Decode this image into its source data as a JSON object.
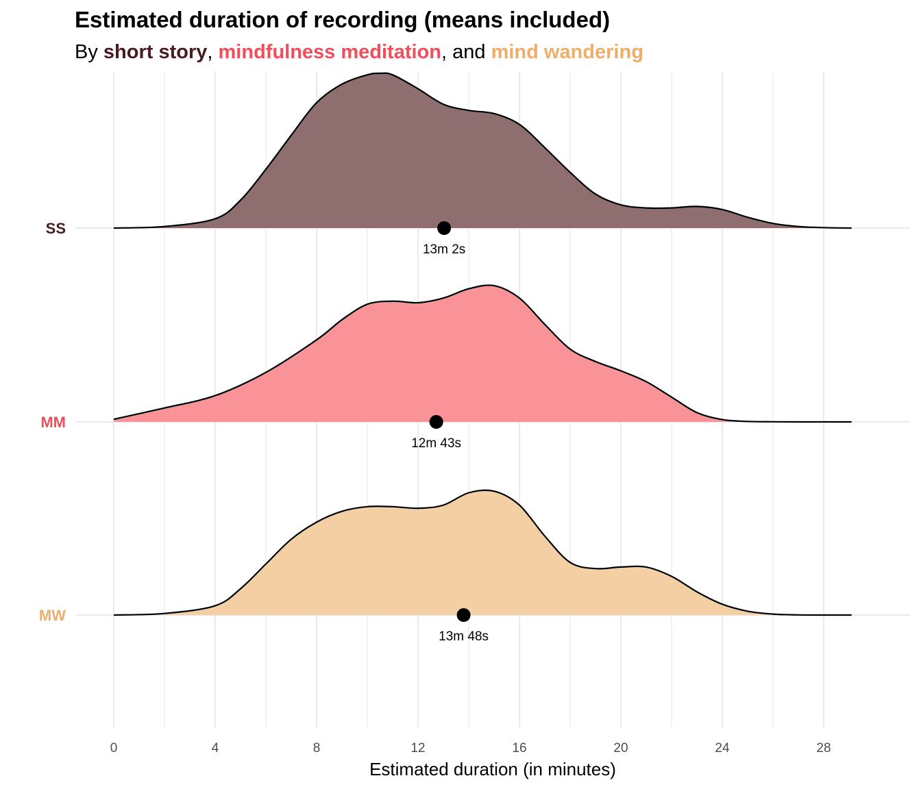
{
  "chart_data": {
    "type": "ridgeline",
    "title": "Estimated duration of recording (means included)",
    "subtitle": {
      "prefix": "By ",
      "sep1": ", ",
      "sep2": ", and ",
      "items": [
        {
          "text": "short story",
          "color": "#4a1a22"
        },
        {
          "text": "mindfulness meditation",
          "color": "#ef4f5b"
        },
        {
          "text": "mind wandering",
          "color": "#edae6c"
        }
      ]
    },
    "xlabel": "Estimated duration (in minutes)",
    "xlim": [
      0,
      29.1
    ],
    "xticks": [
      0,
      4,
      8,
      12,
      16,
      20,
      24,
      28
    ],
    "grid": true,
    "series": [
      {
        "name": "SS",
        "label_color": "#4a1a22",
        "fill": "#8f6e70",
        "mean": 13.03,
        "mean_label": "13m 2s",
        "density_x": [
          0,
          2,
          4,
          5,
          6,
          7,
          8,
          9,
          10,
          10.5,
          11,
          12,
          13,
          14,
          15,
          16,
          17,
          18,
          19,
          20,
          21,
          22,
          23,
          24,
          25,
          26,
          27,
          28,
          29.1
        ],
        "density_y": [
          0,
          0.01,
          0.06,
          0.18,
          0.38,
          0.6,
          0.81,
          0.93,
          0.99,
          1.0,
          0.99,
          0.9,
          0.8,
          0.76,
          0.74,
          0.67,
          0.52,
          0.36,
          0.22,
          0.15,
          0.13,
          0.13,
          0.14,
          0.12,
          0.07,
          0.03,
          0.01,
          0.003,
          0
        ]
      },
      {
        "name": "MM",
        "label_color": "#ef4f5b",
        "fill": "#f99398",
        "mean": 12.72,
        "mean_label": "12m 43s",
        "density_x": [
          0,
          2,
          4,
          6,
          8,
          9,
          10,
          11,
          12,
          13,
          14,
          15,
          16,
          17,
          18,
          19,
          20,
          21,
          22,
          23,
          24,
          25,
          26,
          27,
          28,
          29.1
        ],
        "density_y": [
          0.017,
          0.09,
          0.17,
          0.32,
          0.53,
          0.66,
          0.76,
          0.78,
          0.77,
          0.8,
          0.86,
          0.88,
          0.8,
          0.63,
          0.47,
          0.39,
          0.33,
          0.26,
          0.16,
          0.06,
          0.015,
          0.003,
          0.001,
          0,
          0,
          0
        ]
      },
      {
        "name": "MW",
        "label_color": "#edae6c",
        "fill": "#f4cfa3",
        "mean": 13.8,
        "mean_label": "13m 48s",
        "density_x": [
          0,
          2,
          4,
          5,
          6,
          7,
          8,
          9,
          10,
          11,
          12,
          13,
          14,
          15,
          16,
          17,
          18,
          19,
          20,
          21,
          22,
          23,
          24,
          25,
          26,
          27,
          28,
          29.1
        ],
        "density_y": [
          0,
          0.01,
          0.06,
          0.17,
          0.33,
          0.49,
          0.6,
          0.67,
          0.7,
          0.7,
          0.69,
          0.71,
          0.79,
          0.8,
          0.71,
          0.51,
          0.34,
          0.3,
          0.31,
          0.31,
          0.25,
          0.15,
          0.07,
          0.025,
          0.006,
          0.001,
          0,
          0
        ]
      }
    ]
  }
}
